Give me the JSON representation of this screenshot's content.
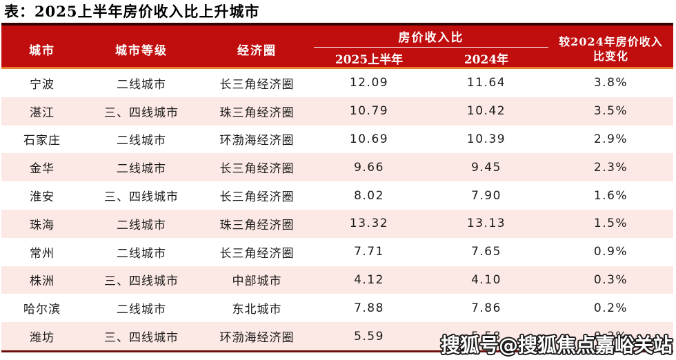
{
  "page": {
    "title": "表：2025上半年房价收入比上升城市"
  },
  "colors": {
    "header_red": "#C00D0D",
    "header_top_border": "#330303",
    "header_orange_rule": "#E8802F",
    "row_alt_pink": "#FCE9E5",
    "table_bottom_border": "#6B100C",
    "header_text": "#FFFFFF",
    "body_text": "#1A1A1A"
  },
  "table": {
    "headers": {
      "city": "城市",
      "tier": "城市等级",
      "region": "经济圈",
      "ratio_group": "房价收入比",
      "ratio_2025h1": "2025上半年",
      "ratio_2024": "2024年",
      "change_line1": "较2024年房价收入",
      "change_line2": "比变化"
    },
    "rows": [
      {
        "city": "宁波",
        "tier": "二线城市",
        "region": "长三角经济圈",
        "h1_2025": "12.09",
        "y2024": "11.64",
        "change": "3.8%"
      },
      {
        "city": "湛江",
        "tier": "三、四线城市",
        "region": "珠三角经济圈",
        "h1_2025": "10.79",
        "y2024": "10.42",
        "change": "3.5%"
      },
      {
        "city": "石家庄",
        "tier": "二线城市",
        "region": "环渤海经济圈",
        "h1_2025": "10.69",
        "y2024": "10.39",
        "change": "2.9%"
      },
      {
        "city": "金华",
        "tier": "二线城市",
        "region": "长三角经济圈",
        "h1_2025": "9.66",
        "y2024": "9.45",
        "change": "2.3%"
      },
      {
        "city": "淮安",
        "tier": "三、四线城市",
        "region": "长三角经济圈",
        "h1_2025": "8.02",
        "y2024": "7.90",
        "change": "1.6%"
      },
      {
        "city": "珠海",
        "tier": "二线城市",
        "region": "珠三角经济圈",
        "h1_2025": "13.32",
        "y2024": "13.13",
        "change": "1.5%"
      },
      {
        "city": "常州",
        "tier": "二线城市",
        "region": "长三角经济圈",
        "h1_2025": "7.71",
        "y2024": "7.65",
        "change": "0.9%"
      },
      {
        "city": "株洲",
        "tier": "三、四线城市",
        "region": "中部城市",
        "h1_2025": "4.12",
        "y2024": "4.10",
        "change": "0.3%"
      },
      {
        "city": "哈尔滨",
        "tier": "二线城市",
        "region": "东北城市",
        "h1_2025": "7.88",
        "y2024": "7.86",
        "change": "0.2%"
      },
      {
        "city": "潍坊",
        "tier": "三、四线城市",
        "region": "环渤海经济圈",
        "h1_2025": "5.59",
        "y2024": "5.58",
        "change": "0.2%"
      }
    ]
  },
  "watermark": {
    "text": "搜狐号@搜狐焦点嘉峪关站"
  },
  "chart_data": {
    "type": "table",
    "title": "表：2025上半年房价收入比上升城市",
    "columns": [
      "城市",
      "城市等级",
      "经济圈",
      "房价收入比 2025上半年",
      "房价收入比 2024年",
      "较2024年房价收入比变化"
    ],
    "rows": [
      [
        "宁波",
        "二线城市",
        "长三角经济圈",
        12.09,
        11.64,
        "3.8%"
      ],
      [
        "湛江",
        "三、四线城市",
        "珠三角经济圈",
        10.79,
        10.42,
        "3.5%"
      ],
      [
        "石家庄",
        "二线城市",
        "环渤海经济圈",
        10.69,
        10.39,
        "2.9%"
      ],
      [
        "金华",
        "二线城市",
        "长三角经济圈",
        9.66,
        9.45,
        "2.3%"
      ],
      [
        "淮安",
        "三、四线城市",
        "长三角经济圈",
        8.02,
        7.9,
        "1.6%"
      ],
      [
        "珠海",
        "二线城市",
        "珠三角经济圈",
        13.32,
        13.13,
        "1.5%"
      ],
      [
        "常州",
        "二线城市",
        "长三角经济圈",
        7.71,
        7.65,
        "0.9%"
      ],
      [
        "株洲",
        "三、四线城市",
        "中部城市",
        4.12,
        4.1,
        "0.3%"
      ],
      [
        "哈尔滨",
        "二线城市",
        "东北城市",
        7.88,
        7.86,
        "0.2%"
      ],
      [
        "潍坊",
        "三、四线城市",
        "环渤海经济圈",
        5.59,
        5.58,
        "0.2%"
      ]
    ]
  }
}
